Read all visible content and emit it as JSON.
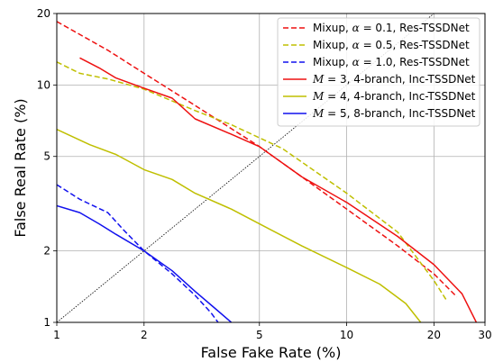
{
  "chart_data": {
    "type": "line",
    "xlabel": "False Fake Rate (%)",
    "ylabel": "False Real Rate (%)",
    "xscale": "log",
    "yscale": "log",
    "xlim": [
      1,
      30
    ],
    "ylim": [
      1,
      20
    ],
    "xticks": [
      1,
      2,
      5,
      10,
      20,
      30
    ],
    "yticks": [
      1,
      2,
      5,
      10,
      20
    ],
    "grid": true,
    "legend_position": "top-right",
    "reference_line": {
      "style": "dotted",
      "color": "#000000",
      "points": [
        [
          1,
          1
        ],
        [
          20,
          20
        ]
      ]
    },
    "series": [
      {
        "name": "Mixup, α = 0.1, Res-TSSDNet",
        "legend_prefix": "Mixup, ",
        "legend_math": "α",
        "legend_suffix": " = 0.1, Res-TSSDNet",
        "color": "#ee1111",
        "dash": "dashed",
        "points": [
          [
            1.0,
            18.5
          ],
          [
            1.5,
            14.0
          ],
          [
            2.0,
            11.2
          ],
          [
            3.0,
            8.2
          ],
          [
            5.0,
            5.5
          ],
          [
            7.0,
            4.1
          ],
          [
            10.0,
            3.0
          ],
          [
            15.0,
            2.1
          ],
          [
            20.0,
            1.6
          ],
          [
            24.0,
            1.28
          ]
        ]
      },
      {
        "name": "Mixup, α = 0.5, Res-TSSDNet",
        "legend_prefix": "Mixup, ",
        "legend_math": "α",
        "legend_suffix": " = 0.5, Res-TSSDNet",
        "color": "#bfbf00",
        "dash": "dashed",
        "points": [
          [
            1.0,
            12.5
          ],
          [
            1.2,
            11.2
          ],
          [
            1.5,
            10.6
          ],
          [
            2.0,
            9.6
          ],
          [
            3.0,
            7.8
          ],
          [
            4.0,
            6.8
          ],
          [
            6.0,
            5.4
          ],
          [
            10.0,
            3.5
          ],
          [
            15.0,
            2.4
          ],
          [
            20.0,
            1.5
          ],
          [
            22.0,
            1.25
          ]
        ]
      },
      {
        "name": "Mixup, α = 1.0, Res-TSSDNet",
        "legend_prefix": "Mixup, ",
        "legend_math": "α",
        "legend_suffix": " = 1.0, Res-TSSDNet",
        "color": "#1111ee",
        "dash": "dashed",
        "points": [
          [
            1.0,
            3.8
          ],
          [
            1.2,
            3.3
          ],
          [
            1.5,
            2.9
          ],
          [
            1.7,
            2.45
          ],
          [
            2.0,
            2.0
          ],
          [
            2.5,
            1.6
          ],
          [
            3.0,
            1.3
          ],
          [
            3.4,
            1.1
          ],
          [
            3.6,
            1.0
          ]
        ]
      },
      {
        "name": "M = 3, 4-branch, Inc-TSSDNet",
        "legend_prefix": "",
        "legend_math": "M",
        "legend_suffix": " = 3, 4-branch, Inc-TSSDNet",
        "color": "#ee1111",
        "dash": "solid",
        "points": [
          [
            1.2,
            13.0
          ],
          [
            1.4,
            11.8
          ],
          [
            1.6,
            10.7
          ],
          [
            2.0,
            9.7
          ],
          [
            2.5,
            8.8
          ],
          [
            3.0,
            7.2
          ],
          [
            4.0,
            6.2
          ],
          [
            5.0,
            5.5
          ],
          [
            7.0,
            4.1
          ],
          [
            10.0,
            3.2
          ],
          [
            15.0,
            2.3
          ],
          [
            20.0,
            1.75
          ],
          [
            25.0,
            1.32
          ],
          [
            28.0,
            1.0
          ]
        ]
      },
      {
        "name": "M = 4, 4-branch, Inc-TSSDNet",
        "legend_prefix": "",
        "legend_math": "M",
        "legend_suffix": " = 4, 4-branch, Inc-TSSDNet",
        "color": "#bfbf00",
        "dash": "solid",
        "points": [
          [
            1.0,
            6.5
          ],
          [
            1.3,
            5.6
          ],
          [
            1.6,
            5.1
          ],
          [
            2.0,
            4.4
          ],
          [
            2.5,
            4.0
          ],
          [
            3.0,
            3.5
          ],
          [
            4.0,
            3.0
          ],
          [
            5.0,
            2.6
          ],
          [
            7.0,
            2.1
          ],
          [
            10.0,
            1.7
          ],
          [
            13.0,
            1.45
          ],
          [
            16.0,
            1.2
          ],
          [
            18.0,
            1.0
          ]
        ]
      },
      {
        "name": "M = 5, 8-branch, Inc-TSSDNet",
        "legend_prefix": "",
        "legend_math": "M",
        "legend_suffix": " = 5, 8-branch, Inc-TSSDNet",
        "color": "#1111ee",
        "dash": "solid",
        "points": [
          [
            1.0,
            3.1
          ],
          [
            1.2,
            2.9
          ],
          [
            1.4,
            2.6
          ],
          [
            1.6,
            2.35
          ],
          [
            2.0,
            2.0
          ],
          [
            2.5,
            1.65
          ],
          [
            3.0,
            1.35
          ],
          [
            3.5,
            1.15
          ],
          [
            4.0,
            1.0
          ]
        ]
      }
    ]
  }
}
